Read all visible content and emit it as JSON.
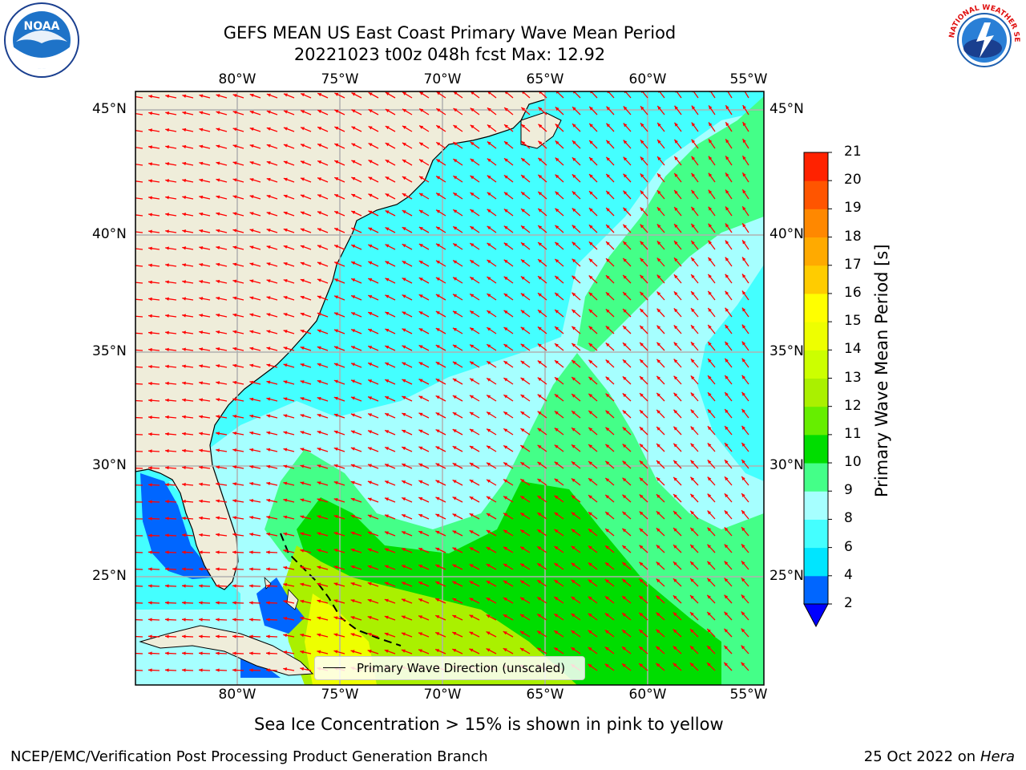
{
  "title": {
    "line1": "GEFS MEAN US East Coast Primary Wave Mean Period",
    "line2": "20221023 t00z 048h fcst   Max: 12.92"
  },
  "map": {
    "lon_labels": [
      "80°W",
      "75°W",
      "70°W",
      "65°W",
      "60°W",
      "55°W"
    ],
    "lat_labels": [
      "45°N",
      "40°N",
      "35°N",
      "30°N",
      "25°N"
    ],
    "legend_label": "Primary Wave Direction (unscaled)",
    "land_color": "#efedda",
    "arrow_color": "#ff0000"
  },
  "colorbar": {
    "label": "Primary Wave Mean Period [s]",
    "ticks": [
      "2",
      "4",
      "6",
      "8",
      "9",
      "10",
      "11",
      "12",
      "13",
      "14",
      "15",
      "16",
      "17",
      "18",
      "19",
      "20",
      "21"
    ],
    "colors": [
      "#0066ff",
      "#00e5ff",
      "#44ffff",
      "#a6ffff",
      "#44ff88",
      "#00dd00",
      "#66ee00",
      "#aaf000",
      "#ccff00",
      "#eeff00",
      "#ffff00",
      "#ffcc00",
      "#ffaa00",
      "#ff8800",
      "#ff5500",
      "#ff2200",
      "#ff0000"
    ],
    "under_color": "#0000ff"
  },
  "sea_ice_note": "Sea Ice Concentration > 15% is shown in pink to yellow",
  "footer": {
    "left": "NCEP/EMC/Verification Post Processing Product Generation Branch",
    "date": "25 Oct 2022 on",
    "machine": "Hera"
  },
  "logos": {
    "noaa_text": "NOAA",
    "nws_text": "NATIONAL WEATHER SERVICE"
  }
}
